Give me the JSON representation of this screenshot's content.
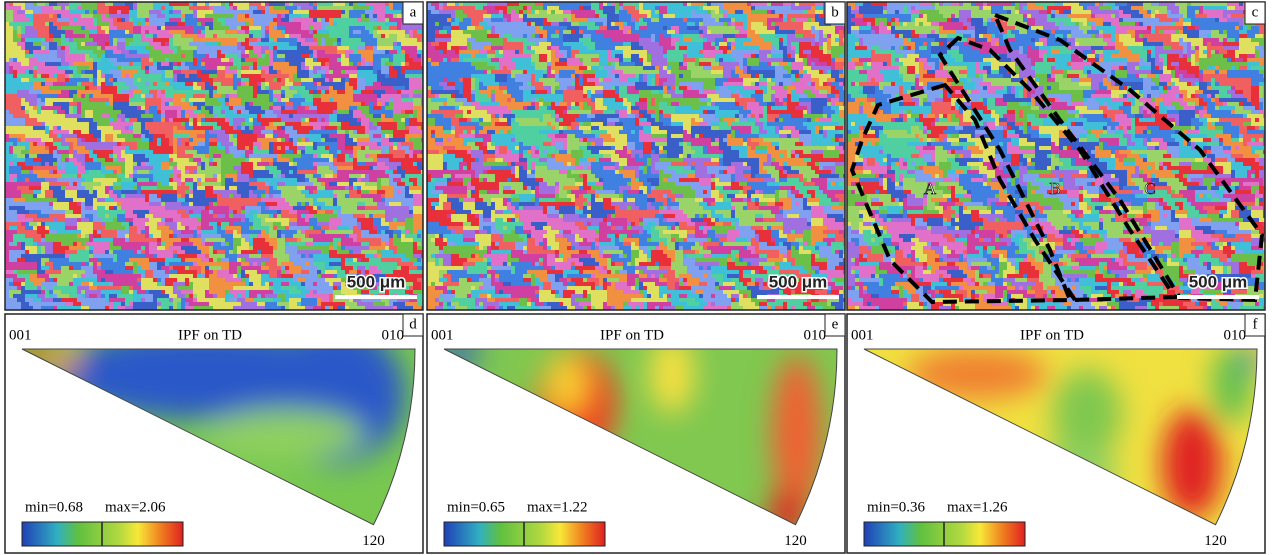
{
  "panels": [
    {
      "label": "a",
      "scale_bar": "500 μm"
    },
    {
      "label": "b",
      "scale_bar": "500 μm"
    },
    {
      "label": "c",
      "scale_bar": "500 μm",
      "regions": [
        "A",
        "B",
        "C"
      ]
    }
  ],
  "ipf": [
    {
      "label": "d",
      "title": "IPF on TD",
      "corner_left": "001",
      "corner_right": "010",
      "corner_bottom": "120",
      "min": "min=0.68",
      "max": "max=2.06"
    },
    {
      "label": "e",
      "title": "IPF on TD",
      "corner_left": "001",
      "corner_right": "010",
      "corner_bottom": "120",
      "min": "min=0.65",
      "max": "max=1.22"
    },
    {
      "label": "f",
      "title": "IPF on TD",
      "corner_left": "001",
      "corner_right": "010",
      "corner_bottom": "120",
      "min": "min=0.36",
      "max": "max=1.26"
    }
  ]
}
